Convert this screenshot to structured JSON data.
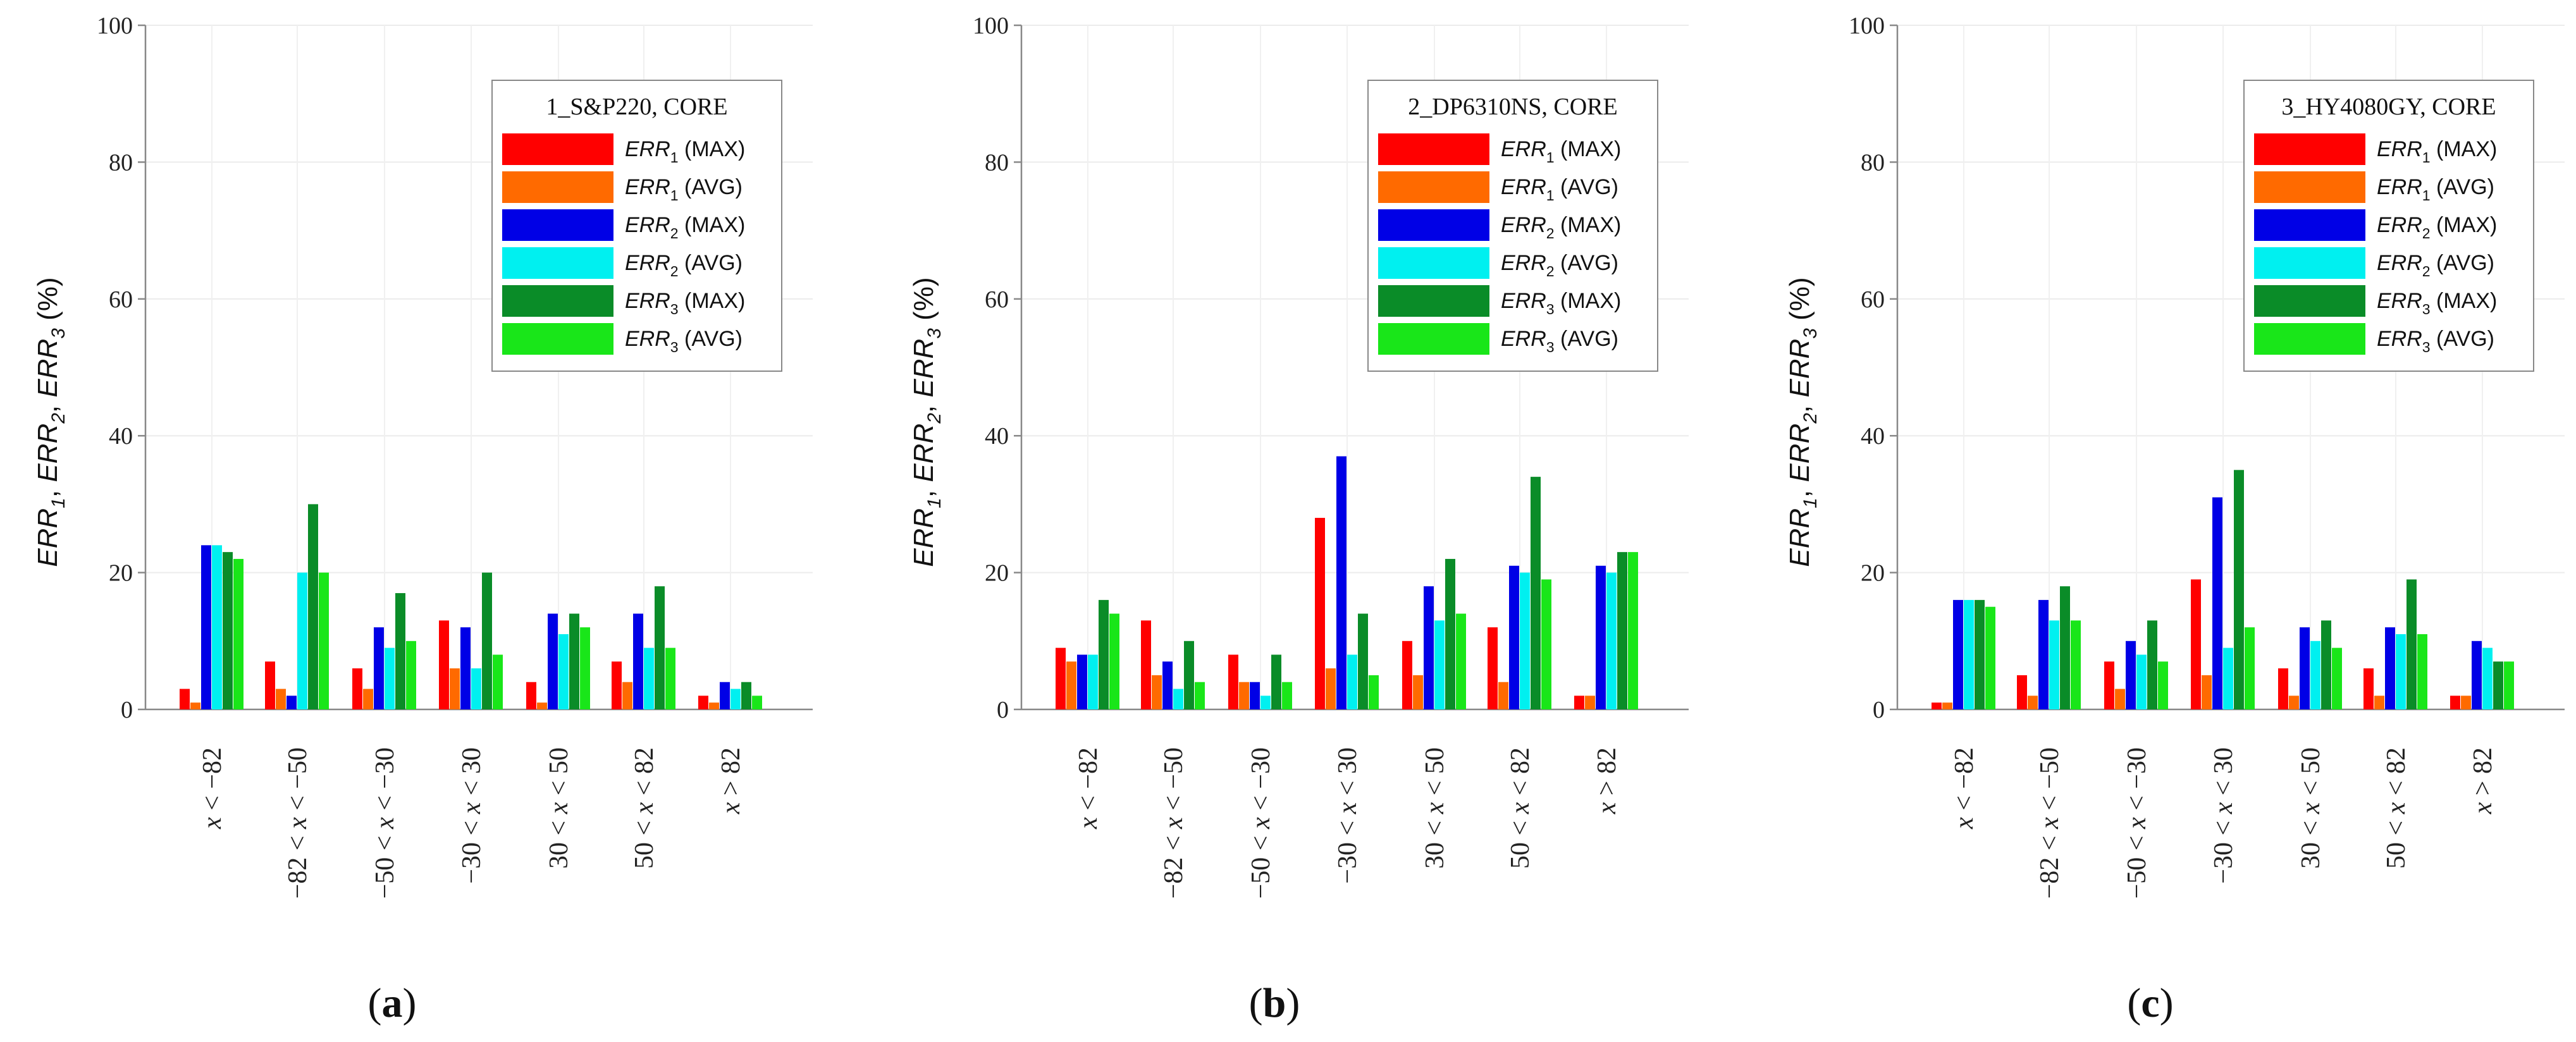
{
  "figure": {
    "panel_labels": [
      "(a)",
      "(b)",
      "(c)"
    ]
  },
  "chart_data": [
    {
      "type": "bar",
      "panel": "(a)",
      "legend_title": "1_S&P220, CORE",
      "ylabel_parts": [
        "ERR1",
        "ERR2",
        "ERR3",
        "(%)"
      ],
      "ylim": [
        0,
        100
      ],
      "yticks": [
        0,
        20,
        40,
        60,
        80,
        100
      ],
      "grid": true,
      "legend_placement": "top-right",
      "categories": [
        "x < −82",
        "−82 < x < −50",
        "−50 < x < −30",
        "−30 < x < 30",
        "30 < x < 50",
        "50 < x < 82",
        "x > 82"
      ],
      "series": [
        {
          "name": "ERR1 (MAX)",
          "color": "#ff0000",
          "values": [
            3,
            7,
            6,
            13,
            4,
            7,
            2
          ]
        },
        {
          "name": "ERR1 (AVG)",
          "color": "#ff6a00",
          "values": [
            1,
            3,
            3,
            6,
            1,
            4,
            1
          ]
        },
        {
          "name": "ERR2 (MAX)",
          "color": "#0000e6",
          "values": [
            24,
            2,
            12,
            12,
            14,
            14,
            4
          ]
        },
        {
          "name": "ERR2 (AVG)",
          "color": "#00f0f0",
          "values": [
            24,
            20,
            9,
            6,
            11,
            9,
            3
          ]
        },
        {
          "name": "ERR3 (MAX)",
          "color": "#0a8c28",
          "values": [
            23,
            30,
            17,
            20,
            14,
            18,
            4
          ]
        },
        {
          "name": "ERR3 (AVG)",
          "color": "#19e619",
          "values": [
            22,
            20,
            10,
            8,
            12,
            9,
            2
          ]
        }
      ]
    },
    {
      "type": "bar",
      "panel": "(b)",
      "legend_title": "2_DP6310NS, CORE",
      "ylabel_parts": [
        "ERR1",
        "ERR2",
        "ERR3",
        "(%)"
      ],
      "ylim": [
        0,
        100
      ],
      "yticks": [
        0,
        20,
        40,
        60,
        80,
        100
      ],
      "grid": true,
      "legend_placement": "top-right",
      "categories": [
        "x < −82",
        "−82 < x < −50",
        "−50 < x < −30",
        "−30 < x < 30",
        "30 < x < 50",
        "50 < x < 82",
        "x > 82"
      ],
      "series": [
        {
          "name": "ERR1 (MAX)",
          "color": "#ff0000",
          "values": [
            9,
            13,
            8,
            28,
            10,
            12,
            2
          ]
        },
        {
          "name": "ERR1 (AVG)",
          "color": "#ff6a00",
          "values": [
            7,
            5,
            4,
            6,
            5,
            4,
            2
          ]
        },
        {
          "name": "ERR2 (MAX)",
          "color": "#0000e6",
          "values": [
            8,
            7,
            4,
            37,
            18,
            21,
            21
          ]
        },
        {
          "name": "ERR2 (AVG)",
          "color": "#00f0f0",
          "values": [
            8,
            3,
            2,
            8,
            13,
            20,
            20
          ]
        },
        {
          "name": "ERR3 (MAX)",
          "color": "#0a8c28",
          "values": [
            16,
            10,
            8,
            14,
            22,
            34,
            23
          ]
        },
        {
          "name": "ERR3 (AVG)",
          "color": "#19e619",
          "values": [
            14,
            4,
            4,
            5,
            14,
            19,
            23
          ]
        }
      ]
    },
    {
      "type": "bar",
      "panel": "(c)",
      "legend_title": "3_HY4080GY, CORE",
      "ylabel_parts": [
        "ERR1",
        "ERR2",
        "ERR3",
        "(%)"
      ],
      "ylim": [
        0,
        100
      ],
      "yticks": [
        0,
        20,
        40,
        60,
        80,
        100
      ],
      "grid": true,
      "legend_placement": "top-right",
      "categories": [
        "x < −82",
        "−82 < x < −50",
        "−50 < x < −30",
        "−30 < x < 30",
        "30 < x < 50",
        "50 < x < 82",
        "x > 82"
      ],
      "series": [
        {
          "name": "ERR1 (MAX)",
          "color": "#ff0000",
          "values": [
            1,
            5,
            7,
            19,
            6,
            6,
            2
          ]
        },
        {
          "name": "ERR1 (AVG)",
          "color": "#ff6a00",
          "values": [
            1,
            2,
            3,
            5,
            2,
            2,
            2
          ]
        },
        {
          "name": "ERR2 (MAX)",
          "color": "#0000e6",
          "values": [
            16,
            16,
            10,
            31,
            12,
            12,
            10
          ]
        },
        {
          "name": "ERR2 (AVG)",
          "color": "#00f0f0",
          "values": [
            16,
            13,
            8,
            9,
            10,
            11,
            9
          ]
        },
        {
          "name": "ERR3 (MAX)",
          "color": "#0a8c28",
          "values": [
            16,
            18,
            13,
            35,
            13,
            19,
            7
          ]
        },
        {
          "name": "ERR3 (AVG)",
          "color": "#19e619",
          "values": [
            15,
            13,
            7,
            12,
            9,
            11,
            7
          ]
        }
      ]
    }
  ]
}
